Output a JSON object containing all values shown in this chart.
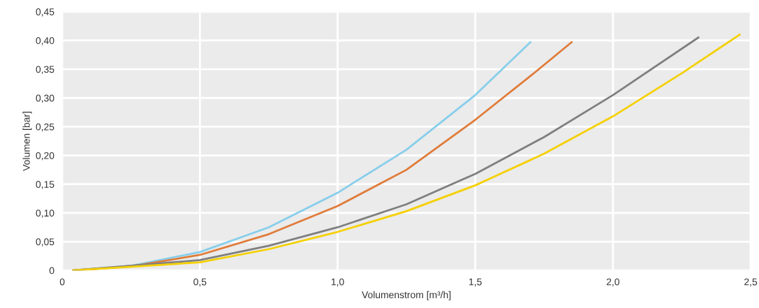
{
  "chart_data": {
    "type": "line",
    "xlabel": "Volumenstrom [m³/h]",
    "ylabel": "Volumen [bar]",
    "xlim": [
      0,
      2.5
    ],
    "ylim": [
      0,
      0.45
    ],
    "xticks": [
      0,
      {
        "value": 0.5,
        "label": "0,5"
      },
      {
        "value": 1.0,
        "label": "1,0"
      },
      {
        "value": 1.5,
        "label": "1,5"
      },
      {
        "value": 2.0,
        "label": "2,0"
      },
      {
        "value": 2.5,
        "label": "2,5"
      }
    ],
    "yticks": [
      0,
      {
        "value": 0.05,
        "label": "0,05"
      },
      {
        "value": 0.1,
        "label": "0,10"
      },
      {
        "value": 0.15,
        "label": "0,15"
      },
      {
        "value": 0.2,
        "label": "0,20"
      },
      {
        "value": 0.25,
        "label": "0,25"
      },
      {
        "value": 0.3,
        "label": "0,30"
      },
      {
        "value": 0.35,
        "label": "0,35"
      },
      {
        "value": 0.4,
        "label": "0,40"
      },
      {
        "value": 0.45,
        "label": "0,45"
      }
    ],
    "grid": true,
    "marker": "none",
    "line_style": "solid",
    "series": [
      {
        "color": "#87ceeb",
        "x": [
          0.04,
          0.25,
          0.5,
          0.75,
          1.0,
          1.25,
          1.5,
          1.7
        ],
        "values": [
          0,
          0.008,
          0.032,
          0.075,
          0.135,
          0.21,
          0.305,
          0.397
        ]
      },
      {
        "color": "#e07b39",
        "x": [
          0.04,
          0.25,
          0.5,
          0.75,
          1.0,
          1.25,
          1.5,
          1.7,
          1.85
        ],
        "values": [
          0,
          0.007,
          0.027,
          0.063,
          0.112,
          0.175,
          0.262,
          0.338,
          0.397
        ]
      },
      {
        "color": "#7f7f7f",
        "x": [
          0.04,
          0.5,
          0.75,
          1.0,
          1.25,
          1.5,
          1.75,
          2.0,
          2.31
        ],
        "values": [
          0,
          0.018,
          0.043,
          0.075,
          0.115,
          0.168,
          0.232,
          0.305,
          0.405
        ]
      },
      {
        "color": "#f5d000",
        "x": [
          0.04,
          0.5,
          0.75,
          1.0,
          1.25,
          1.5,
          1.75,
          2.0,
          2.25,
          2.46
        ],
        "values": [
          0,
          0.014,
          0.037,
          0.067,
          0.103,
          0.148,
          0.203,
          0.268,
          0.343,
          0.41
        ]
      }
    ]
  }
}
